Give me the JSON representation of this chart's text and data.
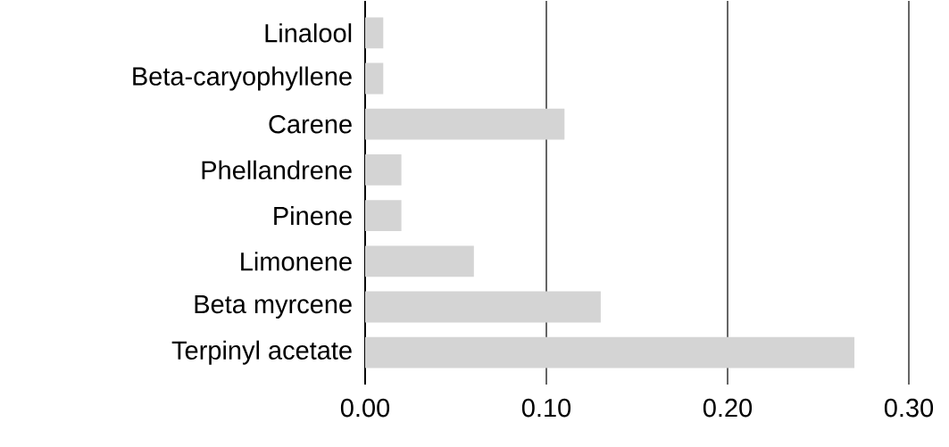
{
  "chart_data": {
    "type": "bar",
    "orientation": "horizontal",
    "categories": [
      "Linalool",
      "Beta-caryophyllene",
      "Carene",
      "Phellandrene",
      "Pinene",
      "Limonene",
      "Beta myrcene",
      "Terpinyl acetate"
    ],
    "values": [
      0.01,
      0.01,
      0.11,
      0.02,
      0.02,
      0.06,
      0.13,
      0.27
    ],
    "color": "#d4d4d4",
    "xlim": [
      0,
      0.3
    ],
    "xticks": [
      {
        "value": 0,
        "label": "0.00"
      },
      {
        "value": 0.1,
        "label": "0.10"
      },
      {
        "value": 0.2,
        "label": "0.20"
      },
      {
        "value": 0.3,
        "label": "0.30"
      }
    ],
    "grid": "x"
  }
}
